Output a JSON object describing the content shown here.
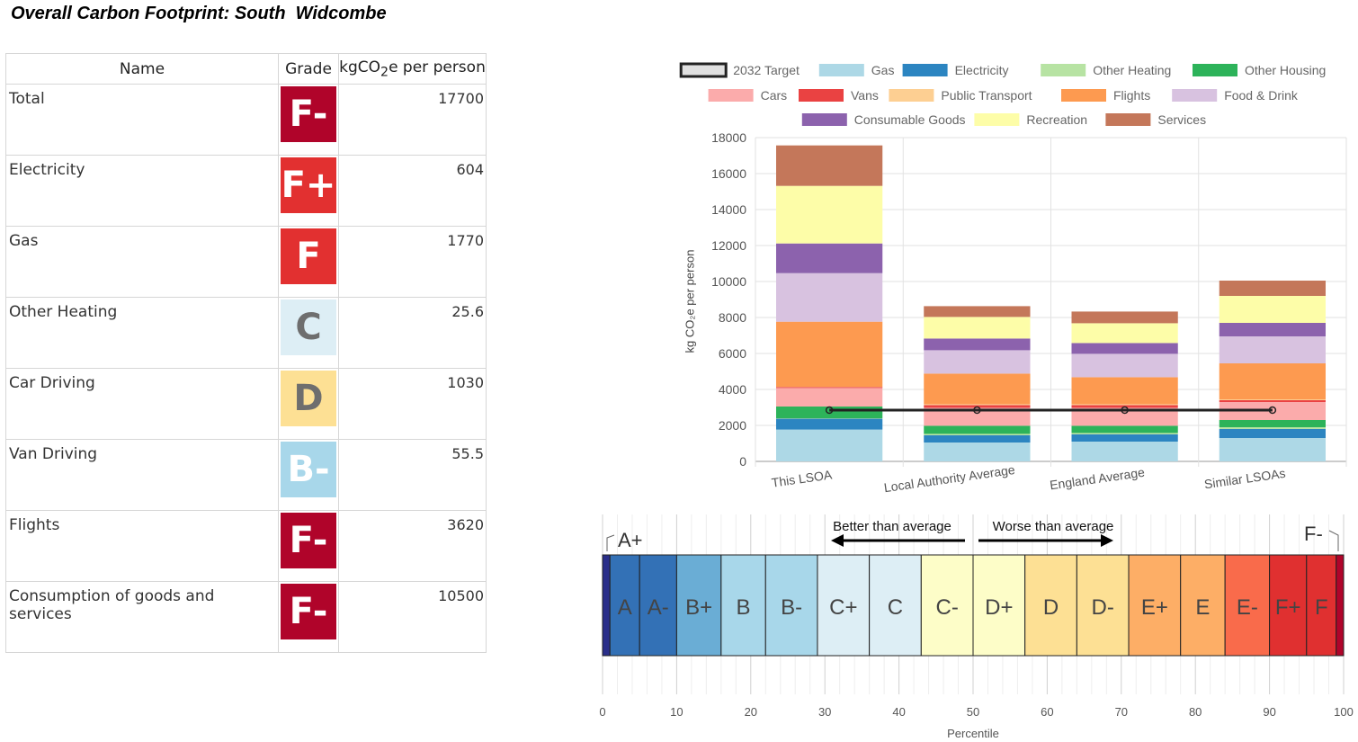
{
  "title": "Overall Carbon Footprint: South  Widcombe",
  "table": {
    "headers": {
      "name": "Name",
      "grade": "Grade",
      "value_prefix": "kgCO",
      "value_sub": "2",
      "value_suffix": "e per person"
    },
    "rows": [
      {
        "name": "Total",
        "grade": "F-",
        "value": "17700",
        "bg": "#b0042a",
        "fg": "#ffffff"
      },
      {
        "name": "Electricity",
        "grade": "F+",
        "value": "604",
        "bg": "#e23030",
        "fg": "#ffffff"
      },
      {
        "name": "Gas",
        "grade": "F",
        "value": "1770",
        "bg": "#e23030",
        "fg": "#ffffff"
      },
      {
        "name": "Other Heating",
        "grade": "C",
        "value": "25.6",
        "bg": "#ddeef5",
        "fg": "#6e6e6e"
      },
      {
        "name": "Car Driving",
        "grade": "D",
        "value": "1030",
        "bg": "#fde094",
        "fg": "#6e6e6e"
      },
      {
        "name": "Van Driving",
        "grade": "B-",
        "value": "55.5",
        "bg": "#a8d7ea",
        "fg": "#ffffff"
      },
      {
        "name": "Flights",
        "grade": "F-",
        "value": "3620",
        "bg": "#b0042a",
        "fg": "#ffffff"
      },
      {
        "name": "Consumption of goods and services",
        "grade": "F-",
        "value": "10500",
        "bg": "#b0042a",
        "fg": "#ffffff"
      }
    ]
  },
  "chart_data": [
    {
      "type": "bar",
      "stacked": true,
      "ylabel": "kg CO₂e per person",
      "ylim": [
        0,
        18000
      ],
      "yticks": [
        0,
        2000,
        4000,
        6000,
        8000,
        10000,
        12000,
        14000,
        16000,
        18000
      ],
      "grid": true,
      "legend_position": "top",
      "categories": [
        "This LSOA",
        "Local Authority Average",
        "England Average",
        "Similar LSOAs"
      ],
      "target": {
        "name": "2032 Target",
        "values": [
          2850,
          2850,
          2850,
          2850
        ],
        "color": "#222222"
      },
      "series": [
        {
          "name": "Gas",
          "color": "#add8e6",
          "values": [
            1770,
            1050,
            1100,
            1300
          ]
        },
        {
          "name": "Electricity",
          "color": "#2c85c1",
          "values": [
            604,
            400,
            400,
            500
          ]
        },
        {
          "name": "Other Heating",
          "color": "#b7e3a3",
          "values": [
            26,
            80,
            80,
            100
          ]
        },
        {
          "name": "Other Housing",
          "color": "#2db35a",
          "values": [
            650,
            450,
            400,
            400
          ]
        },
        {
          "name": "Cars",
          "color": "#fbabab",
          "values": [
            1030,
            1000,
            1000,
            1000
          ]
        },
        {
          "name": "Vans",
          "color": "#ea4242",
          "values": [
            56,
            150,
            150,
            100
          ]
        },
        {
          "name": "Public Transport",
          "color": "#fdcf92",
          "values": [
            10,
            50,
            50,
            50
          ]
        },
        {
          "name": "Flights",
          "color": "#fd9a50",
          "values": [
            3620,
            1700,
            1500,
            2000
          ]
        },
        {
          "name": "Food & Drink",
          "color": "#d8c2e0",
          "values": [
            2700,
            1300,
            1300,
            1500
          ]
        },
        {
          "name": "Consumable Goods",
          "color": "#8c62ad",
          "values": [
            1650,
            650,
            600,
            750
          ]
        },
        {
          "name": "Recreation",
          "color": "#fdfda8",
          "values": [
            3200,
            1200,
            1100,
            1500
          ]
        },
        {
          "name": "Services",
          "color": "#c4775a",
          "values": [
            2250,
            600,
            650,
            850
          ]
        }
      ]
    },
    {
      "type": "bar",
      "xlabel": "Percentile",
      "xlim": [
        0,
        100
      ],
      "xticks": [
        0,
        10,
        20,
        30,
        40,
        50,
        60,
        70,
        80,
        90,
        100
      ],
      "grades": [
        {
          "label": "A+",
          "start": 0,
          "end": 1,
          "color": "#2a2e8a"
        },
        {
          "label": "A",
          "start": 1,
          "end": 5,
          "color": "#3371b6"
        },
        {
          "label": "A-",
          "start": 5,
          "end": 10,
          "color": "#3371b6"
        },
        {
          "label": "B+",
          "start": 10,
          "end": 16,
          "color": "#6aadd5"
        },
        {
          "label": "B",
          "start": 16,
          "end": 22,
          "color": "#a8d7ea"
        },
        {
          "label": "B-",
          "start": 22,
          "end": 29,
          "color": "#a8d7ea"
        },
        {
          "label": "C+",
          "start": 29,
          "end": 36,
          "color": "#ddeef5"
        },
        {
          "label": "C",
          "start": 36,
          "end": 43,
          "color": "#ddeef5"
        },
        {
          "label": "C-",
          "start": 43,
          "end": 50,
          "color": "#fdfdc8"
        },
        {
          "label": "D+",
          "start": 50,
          "end": 57,
          "color": "#fdfdc8"
        },
        {
          "label": "D",
          "start": 57,
          "end": 64,
          "color": "#fde094"
        },
        {
          "label": "D-",
          "start": 64,
          "end": 71,
          "color": "#fde094"
        },
        {
          "label": "E+",
          "start": 71,
          "end": 78,
          "color": "#fdae66"
        },
        {
          "label": "E",
          "start": 78,
          "end": 84,
          "color": "#fdae66"
        },
        {
          "label": "E-",
          "start": 84,
          "end": 90,
          "color": "#f96b4b"
        },
        {
          "label": "F+",
          "start": 90,
          "end": 95,
          "color": "#e03030"
        },
        {
          "label": "F",
          "start": 95,
          "end": 99,
          "color": "#e03030"
        },
        {
          "label": "F-",
          "start": 99,
          "end": 100,
          "color": "#b0042a"
        }
      ],
      "annotations": {
        "better": "Better than average",
        "worse": "Worse than average",
        "top_label": "A+",
        "bottom_label": "F-"
      }
    }
  ]
}
